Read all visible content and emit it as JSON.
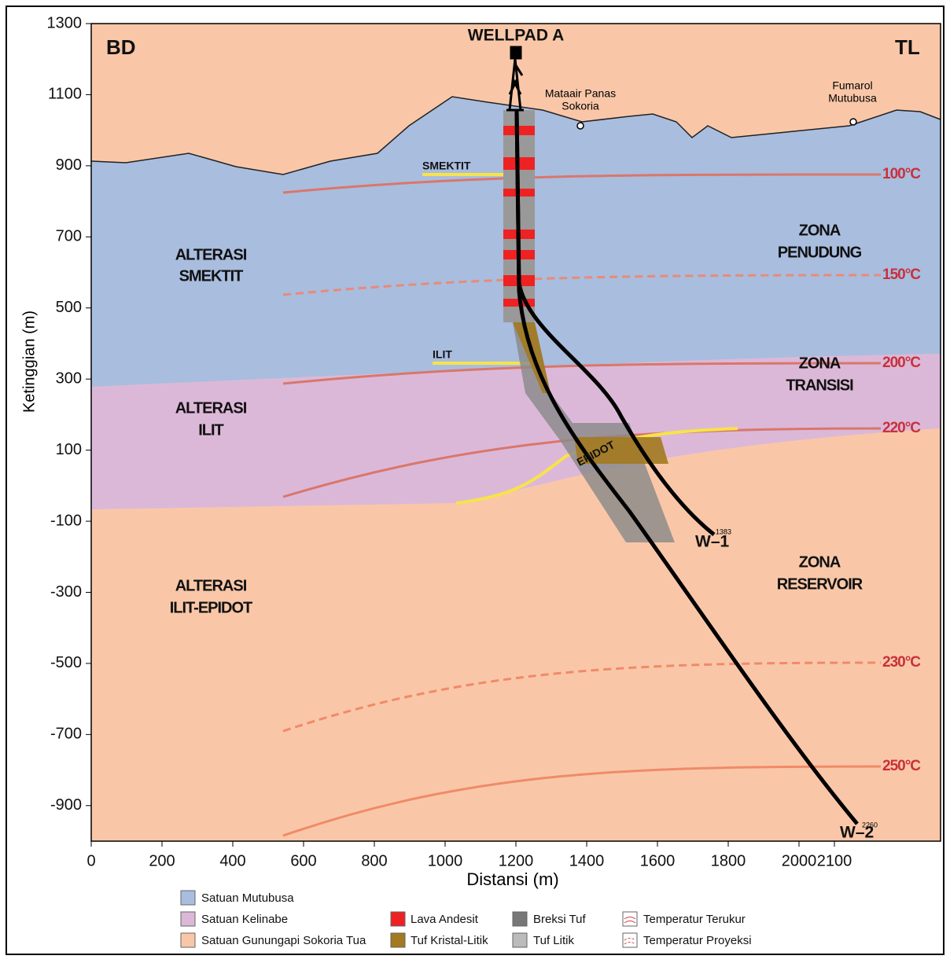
{
  "chart_data": {
    "type": "cross-section",
    "x_label": "Distansi (m)",
    "y_label": "Ketinggian (m)",
    "xlim": [
      0,
      2400
    ],
    "ylim": [
      -1000,
      1300
    ],
    "xticks": [
      0,
      200,
      400,
      600,
      800,
      1000,
      1200,
      1400,
      1600,
      1800,
      2000,
      2100
    ],
    "yticks": [
      1300,
      1100,
      900,
      700,
      500,
      300,
      100,
      -100,
      -300,
      -500,
      -700,
      -900
    ],
    "corners": [
      "BD",
      "TL"
    ],
    "wellpad": "WELLPAD A",
    "springs": [
      [
        "Mataair Panas",
        "Sokoria"
      ],
      [
        "Fumarol",
        "Mutubusa"
      ]
    ],
    "alteration": [
      [
        "ALTERASI",
        "SMEKTIT"
      ],
      [
        "ALTERASI",
        "ILIT"
      ],
      [
        "ALTERASI",
        "ILIT-EPIDOT"
      ]
    ],
    "zones": [
      [
        "ZONA",
        "PENUDUNG"
      ],
      [
        "ZONA",
        "TRANSISI"
      ],
      [
        "ZONA",
        "RESERVOIR"
      ]
    ],
    "minerals": [
      "SMEKTIT",
      "ILIT",
      "EPIDOT"
    ],
    "isotherms": [
      "100°C",
      "150°C",
      "200°C",
      "220°C",
      "230°C",
      "250°C"
    ],
    "wells": [
      {
        "name": "W–1",
        "depth": "1383"
      },
      {
        "name": "W–2",
        "depth": "2260"
      }
    ],
    "legend": [
      "Satuan Mutubusa",
      "Satuan Kelinabe",
      "Satuan Gunungapi Sokoria Tua",
      "Lava Andesit",
      "Tuf Kristal-Litik",
      "Breksi Tuf",
      "Tuf Litik",
      "Temperatur Terukur",
      "Temperatur Proyeksi"
    ]
  }
}
